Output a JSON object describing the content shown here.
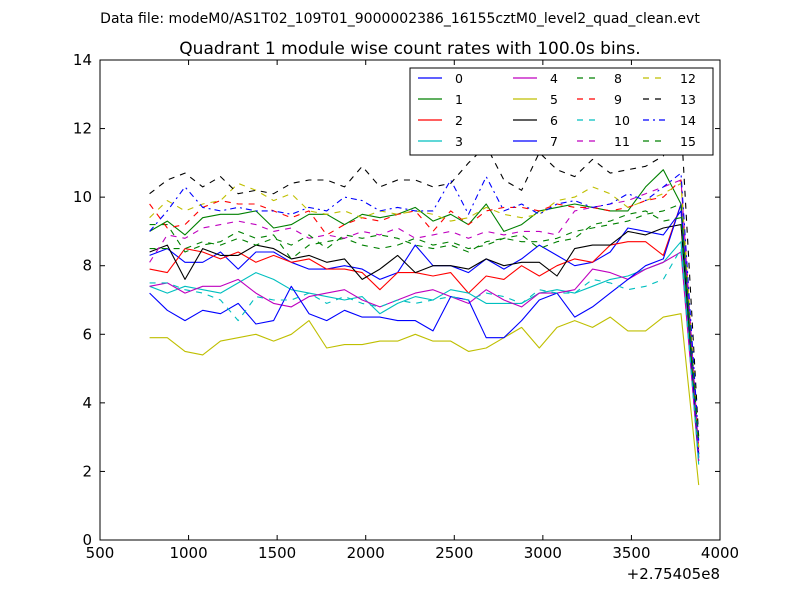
{
  "chart_data": {
    "type": "line",
    "suptitle": "Data file: modeM0/AS1T02_109T01_9000002386_16155cztM0_level2_quad_clean.evt",
    "title": "Quadrant 1 module wise count rates with 100.0s bins.",
    "xlabel": "",
    "ylabel": "",
    "x_offset_label": "+2.75405e8",
    "xlim": [
      500,
      4000
    ],
    "ylim": [
      0,
      14
    ],
    "xticks": [
      "500",
      "1000",
      "1500",
      "2000",
      "2500",
      "3000",
      "3500",
      "4000"
    ],
    "yticks": [
      "0",
      "2",
      "4",
      "6",
      "8",
      "10",
      "12",
      "14"
    ],
    "grid": false,
    "legend_position": "top-right",
    "x": [
      780,
      880,
      980,
      1080,
      1180,
      1280,
      1380,
      1480,
      1580,
      1680,
      1780,
      1880,
      1980,
      2080,
      2180,
      2280,
      2380,
      2480,
      2580,
      2680,
      2780,
      2880,
      2980,
      3080,
      3180,
      3280,
      3380,
      3480,
      3580,
      3680,
      3780,
      3880
    ],
    "series": [
      {
        "name": "0",
        "color": "#0000ff",
        "dash": "solid",
        "values": [
          8.3,
          8.5,
          8.1,
          8.1,
          8.4,
          7.9,
          8.4,
          8.4,
          8.1,
          7.9,
          7.9,
          8.0,
          7.9,
          7.6,
          7.8,
          8.6,
          8.0,
          8.0,
          7.8,
          8.2,
          7.9,
          8.2,
          8.6,
          8.3,
          8.0,
          8.1,
          8.4,
          9.1,
          9.0,
          8.9,
          9.6,
          2.3
        ]
      },
      {
        "name": "1",
        "color": "#008000",
        "dash": "solid",
        "values": [
          9.0,
          9.3,
          8.9,
          9.4,
          9.5,
          9.5,
          9.6,
          9.1,
          9.2,
          9.5,
          9.5,
          9.2,
          9.5,
          9.4,
          9.5,
          9.7,
          9.3,
          9.5,
          9.2,
          9.8,
          9.0,
          9.2,
          9.6,
          9.7,
          9.8,
          9.7,
          9.6,
          9.6,
          10.3,
          10.8,
          9.8,
          2.5
        ]
      },
      {
        "name": "2",
        "color": "#ff0000",
        "dash": "solid",
        "values": [
          7.9,
          7.8,
          8.5,
          8.4,
          8.2,
          8.4,
          8.1,
          8.3,
          8.1,
          8.2,
          7.9,
          7.9,
          7.8,
          7.3,
          7.8,
          7.8,
          7.7,
          7.8,
          7.2,
          7.7,
          7.6,
          8.0,
          7.7,
          8.0,
          8.2,
          8.1,
          8.6,
          8.7,
          8.7,
          8.3,
          9.8,
          2.4
        ]
      },
      {
        "name": "3",
        "color": "#00bfbf",
        "dash": "solid",
        "values": [
          7.4,
          7.2,
          7.4,
          7.3,
          7.2,
          7.5,
          7.8,
          7.6,
          7.3,
          7.2,
          7.1,
          7.0,
          7.1,
          6.6,
          6.9,
          7.1,
          7.0,
          7.3,
          7.2,
          6.9,
          6.9,
          6.9,
          7.2,
          7.3,
          7.2,
          7.4,
          7.6,
          7.7,
          7.9,
          8.1,
          8.7,
          2.2
        ]
      },
      {
        "name": "4",
        "color": "#bf00bf",
        "dash": "solid",
        "values": [
          7.4,
          7.5,
          7.2,
          7.4,
          7.4,
          7.6,
          7.2,
          6.9,
          6.8,
          7.1,
          7.2,
          7.3,
          7.0,
          6.8,
          7.0,
          7.2,
          7.3,
          7.1,
          6.9,
          7.3,
          7.0,
          6.8,
          7.2,
          7.2,
          7.3,
          7.9,
          7.8,
          7.6,
          7.9,
          8.1,
          8.4,
          2.3
        ]
      },
      {
        "name": "5",
        "color": "#bfbf00",
        "dash": "solid",
        "values": [
          5.9,
          5.9,
          5.5,
          5.4,
          5.8,
          5.9,
          6.0,
          5.8,
          6.0,
          6.4,
          5.6,
          5.7,
          5.7,
          5.8,
          5.8,
          6.0,
          5.8,
          5.8,
          5.5,
          5.6,
          5.9,
          6.2,
          5.6,
          6.2,
          6.4,
          6.2,
          6.5,
          6.1,
          6.1,
          6.5,
          6.6,
          1.6
        ]
      },
      {
        "name": "6",
        "color": "#000000",
        "dash": "solid",
        "values": [
          8.4,
          8.6,
          7.6,
          8.5,
          8.3,
          8.3,
          8.6,
          8.5,
          8.2,
          8.3,
          8.1,
          8.2,
          7.6,
          7.9,
          8.3,
          7.8,
          8.0,
          8.0,
          7.9,
          8.2,
          8.0,
          8.1,
          8.1,
          7.7,
          8.5,
          8.6,
          8.6,
          9.0,
          8.9,
          9.1,
          9.2,
          2.5
        ]
      },
      {
        "name": "7",
        "color": "#0000ff",
        "dash": "solid",
        "values": [
          7.2,
          6.7,
          6.4,
          6.7,
          6.6,
          6.9,
          6.3,
          6.4,
          7.4,
          6.6,
          6.4,
          6.7,
          6.5,
          6.5,
          6.4,
          6.4,
          6.1,
          7.1,
          7.0,
          5.9,
          5.9,
          6.4,
          7.0,
          7.2,
          6.5,
          6.8,
          7.2,
          7.6,
          8.0,
          8.2,
          9.8,
          2.4
        ]
      },
      {
        "name": "8",
        "color": "#008000",
        "dash": "dash",
        "values": [
          9.2,
          9.2,
          8.4,
          8.6,
          8.7,
          9.0,
          8.8,
          8.9,
          8.2,
          8.6,
          8.7,
          8.8,
          8.6,
          8.5,
          8.6,
          8.8,
          8.6,
          8.7,
          8.5,
          8.6,
          8.8,
          8.9,
          8.5,
          8.7,
          8.8,
          9.2,
          9.3,
          9.5,
          9.6,
          9.3,
          9.4,
          2.6
        ]
      },
      {
        "name": "9",
        "color": "#ff0000",
        "dash": "dash",
        "values": [
          9.8,
          9.1,
          9.2,
          9.7,
          9.9,
          9.8,
          9.8,
          9.6,
          9.4,
          9.6,
          8.9,
          9.2,
          9.4,
          9.3,
          9.5,
          9.6,
          9.0,
          9.6,
          9.2,
          9.6,
          9.7,
          9.7,
          9.6,
          9.8,
          9.7,
          9.7,
          9.6,
          9.7,
          9.9,
          10.0,
          10.5,
          2.7
        ]
      },
      {
        "name": "10",
        "color": "#00bfbf",
        "dash": "dash",
        "values": [
          7.5,
          7.5,
          7.3,
          7.2,
          7.0,
          6.4,
          7.1,
          7.0,
          7.0,
          7.2,
          6.9,
          7.1,
          6.9,
          6.8,
          7.0,
          6.9,
          7.0,
          7.1,
          7.0,
          7.2,
          7.1,
          6.9,
          7.3,
          7.2,
          7.2,
          7.6,
          7.5,
          7.3,
          7.4,
          7.6,
          8.5,
          2.3
        ]
      },
      {
        "name": "11",
        "color": "#bf00bf",
        "dash": "dash",
        "values": [
          8.1,
          8.9,
          8.8,
          9.1,
          9.2,
          9.3,
          9.2,
          9.0,
          9.1,
          8.8,
          8.9,
          8.8,
          9.0,
          8.9,
          9.1,
          8.8,
          8.9,
          9.0,
          8.8,
          9.0,
          8.9,
          9.0,
          9.0,
          8.9,
          9.6,
          9.7,
          9.8,
          9.9,
          10.1,
          10.3,
          10.5,
          2.6
        ]
      },
      {
        "name": "12",
        "color": "#bfbf00",
        "dash": "dash",
        "values": [
          9.4,
          9.9,
          9.6,
          9.8,
          9.9,
          10.4,
          10.2,
          9.9,
          10.1,
          9.6,
          9.5,
          9.6,
          9.4,
          9.6,
          9.5,
          9.6,
          9.5,
          9.3,
          9.4,
          9.7,
          9.5,
          9.4,
          9.5,
          9.9,
          10.0,
          10.3,
          10.1,
          9.7,
          9.9,
          10.1,
          10.4,
          2.7
        ]
      },
      {
        "name": "13",
        "color": "#000000",
        "dash": "dash",
        "values": [
          10.1,
          10.5,
          10.7,
          10.3,
          10.6,
          10.1,
          10.2,
          10.1,
          10.4,
          10.5,
          10.5,
          10.3,
          10.9,
          10.3,
          10.5,
          10.5,
          10.3,
          10.4,
          11.0,
          11.5,
          10.5,
          10.2,
          11.3,
          10.8,
          10.6,
          11.1,
          10.7,
          10.8,
          10.9,
          11.2,
          12.2,
          3.0
        ]
      },
      {
        "name": "14",
        "color": "#0000ff",
        "dash": "dashdot",
        "values": [
          9.0,
          9.6,
          10.3,
          9.7,
          9.6,
          9.7,
          9.6,
          9.6,
          9.5,
          9.7,
          9.6,
          10.0,
          9.9,
          9.6,
          9.7,
          9.6,
          9.6,
          10.5,
          9.5,
          10.6,
          9.6,
          9.8,
          9.5,
          9.8,
          9.9,
          9.7,
          9.8,
          10.1,
          9.9,
          10.3,
          10.7,
          2.9
        ]
      },
      {
        "name": "15",
        "color": "#008000",
        "dash": "dash",
        "values": [
          8.5,
          8.5,
          8.5,
          8.7,
          8.6,
          8.8,
          8.6,
          8.8,
          8.6,
          8.9,
          8.5,
          8.9,
          8.8,
          8.9,
          8.8,
          8.6,
          8.5,
          8.6,
          8.4,
          8.7,
          8.8,
          8.7,
          8.7,
          8.8,
          9.0,
          9.1,
          9.2,
          9.3,
          9.5,
          9.6,
          9.8,
          2.8
        ]
      }
    ]
  }
}
